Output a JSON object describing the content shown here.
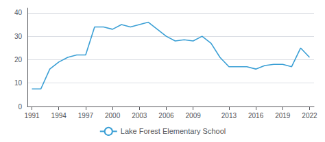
{
  "chart_data": {
    "type": "line",
    "x": [
      1991,
      1992,
      1993,
      1994,
      1995,
      1996,
      1997,
      1998,
      1999,
      2000,
      2001,
      2002,
      2003,
      2004,
      2005,
      2006,
      2007,
      2008,
      2009,
      2010,
      2011,
      2012,
      2013,
      2014,
      2015,
      2016,
      2017,
      2018,
      2019,
      2020,
      2021,
      2022
    ],
    "series": [
      {
        "name": "Lake Forest Elementary School",
        "color": "#3a9fd5",
        "values": [
          7.5,
          7.5,
          16,
          19,
          21,
          22,
          22,
          34,
          34,
          33,
          35,
          34,
          35,
          36,
          33,
          30,
          28,
          28.5,
          28,
          30,
          27,
          21,
          17,
          17,
          17,
          16,
          17.5,
          18,
          18,
          17,
          25,
          21
        ]
      }
    ],
    "xlim": [
      1990.5,
      2022.5
    ],
    "xticks": [
      1991,
      1994,
      1997,
      2000,
      2003,
      2006,
      2009,
      2013,
      2016,
      2019,
      2022
    ],
    "ylim": [
      0,
      42
    ],
    "yticks": [
      0,
      10,
      20,
      30,
      40
    ],
    "grid": true,
    "legend": "bottom"
  }
}
